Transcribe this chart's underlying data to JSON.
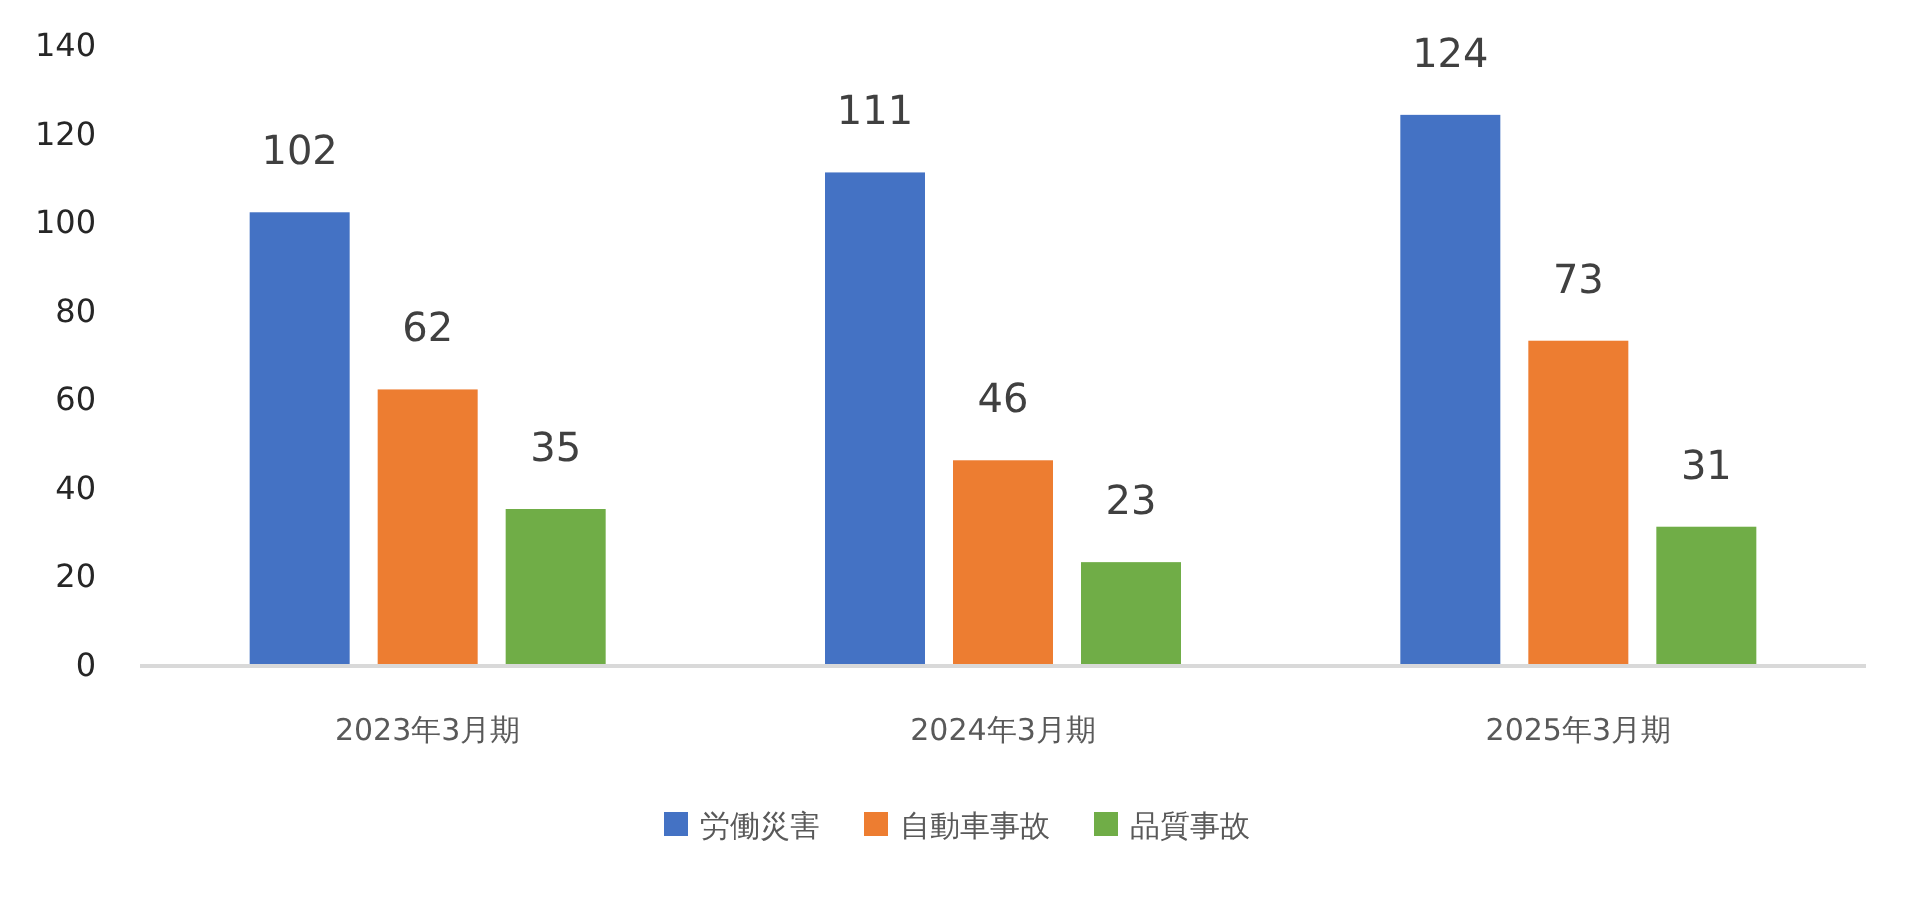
{
  "chart_data": {
    "type": "bar",
    "categories": [
      "2023年3月期",
      "2024年3月期",
      "2025年3月期"
    ],
    "series": [
      {
        "name": "労働災害",
        "color": "#4472c4",
        "values": [
          102,
          111,
          124
        ]
      },
      {
        "name": "自動車事故",
        "color": "#ed7d31",
        "values": [
          62,
          46,
          73
        ]
      },
      {
        "name": "品質事故",
        "color": "#70ad47",
        "values": [
          35,
          23,
          31
        ]
      }
    ],
    "ylim": [
      0,
      140
    ],
    "yticks": [
      0,
      20,
      40,
      60,
      80,
      100,
      120,
      140
    ],
    "data_labels": true,
    "grid": false,
    "legend": "bottom"
  }
}
